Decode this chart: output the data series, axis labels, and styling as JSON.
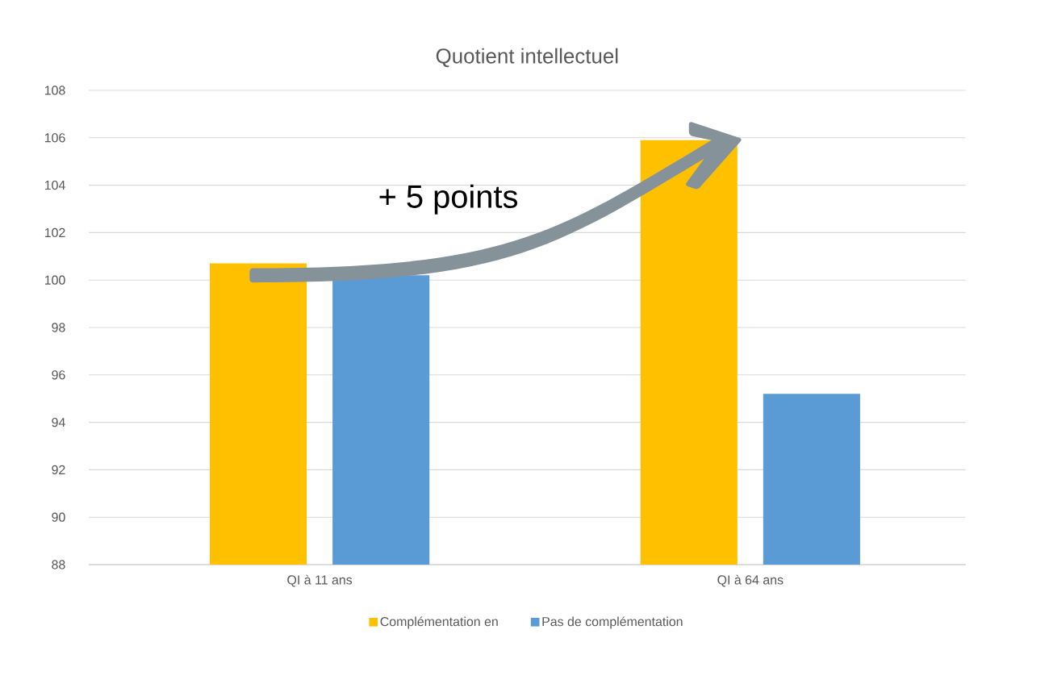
{
  "chart_data": {
    "type": "bar",
    "title": "Quotient intellectuel",
    "categories": [
      "QI à 11 ans",
      "QI à 64 ans"
    ],
    "series": [
      {
        "name": "Complémentation en",
        "color": "#ffc000",
        "values": [
          100.7,
          105.9
        ]
      },
      {
        "name": "Pas de complémentation",
        "color": "#5b9bd5",
        "values": [
          100.2,
          95.2
        ]
      }
    ],
    "ylim": [
      88,
      108
    ],
    "yticks": [
      88,
      90,
      92,
      94,
      96,
      98,
      100,
      102,
      104,
      106,
      108
    ],
    "grid": "y",
    "legend": "bottom",
    "annotations": [
      "+ 5 points"
    ]
  }
}
